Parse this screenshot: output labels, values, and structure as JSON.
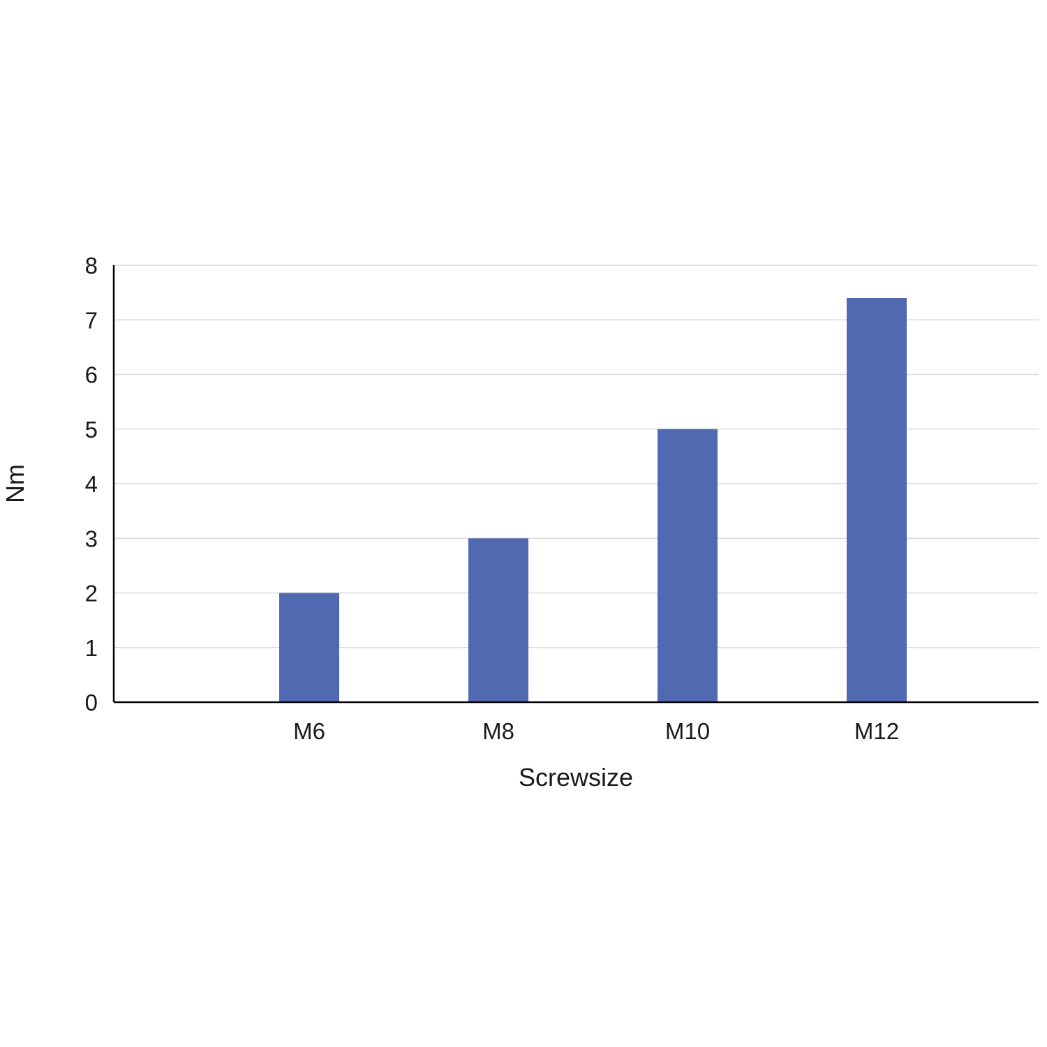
{
  "chart_data": {
    "type": "bar",
    "categories": [
      "M6",
      "M8",
      "M10",
      "M12"
    ],
    "values": [
      2,
      3,
      5,
      7.4
    ],
    "title": "",
    "xlabel": "Screwsize",
    "ylabel": "Nm",
    "ylim": [
      0,
      8
    ],
    "yticks": [
      "0",
      "1",
      "2",
      "3",
      "4",
      "5",
      "6",
      "7",
      "8"
    ],
    "grid": true,
    "legend": "none",
    "bar_color": "#5069b1"
  }
}
